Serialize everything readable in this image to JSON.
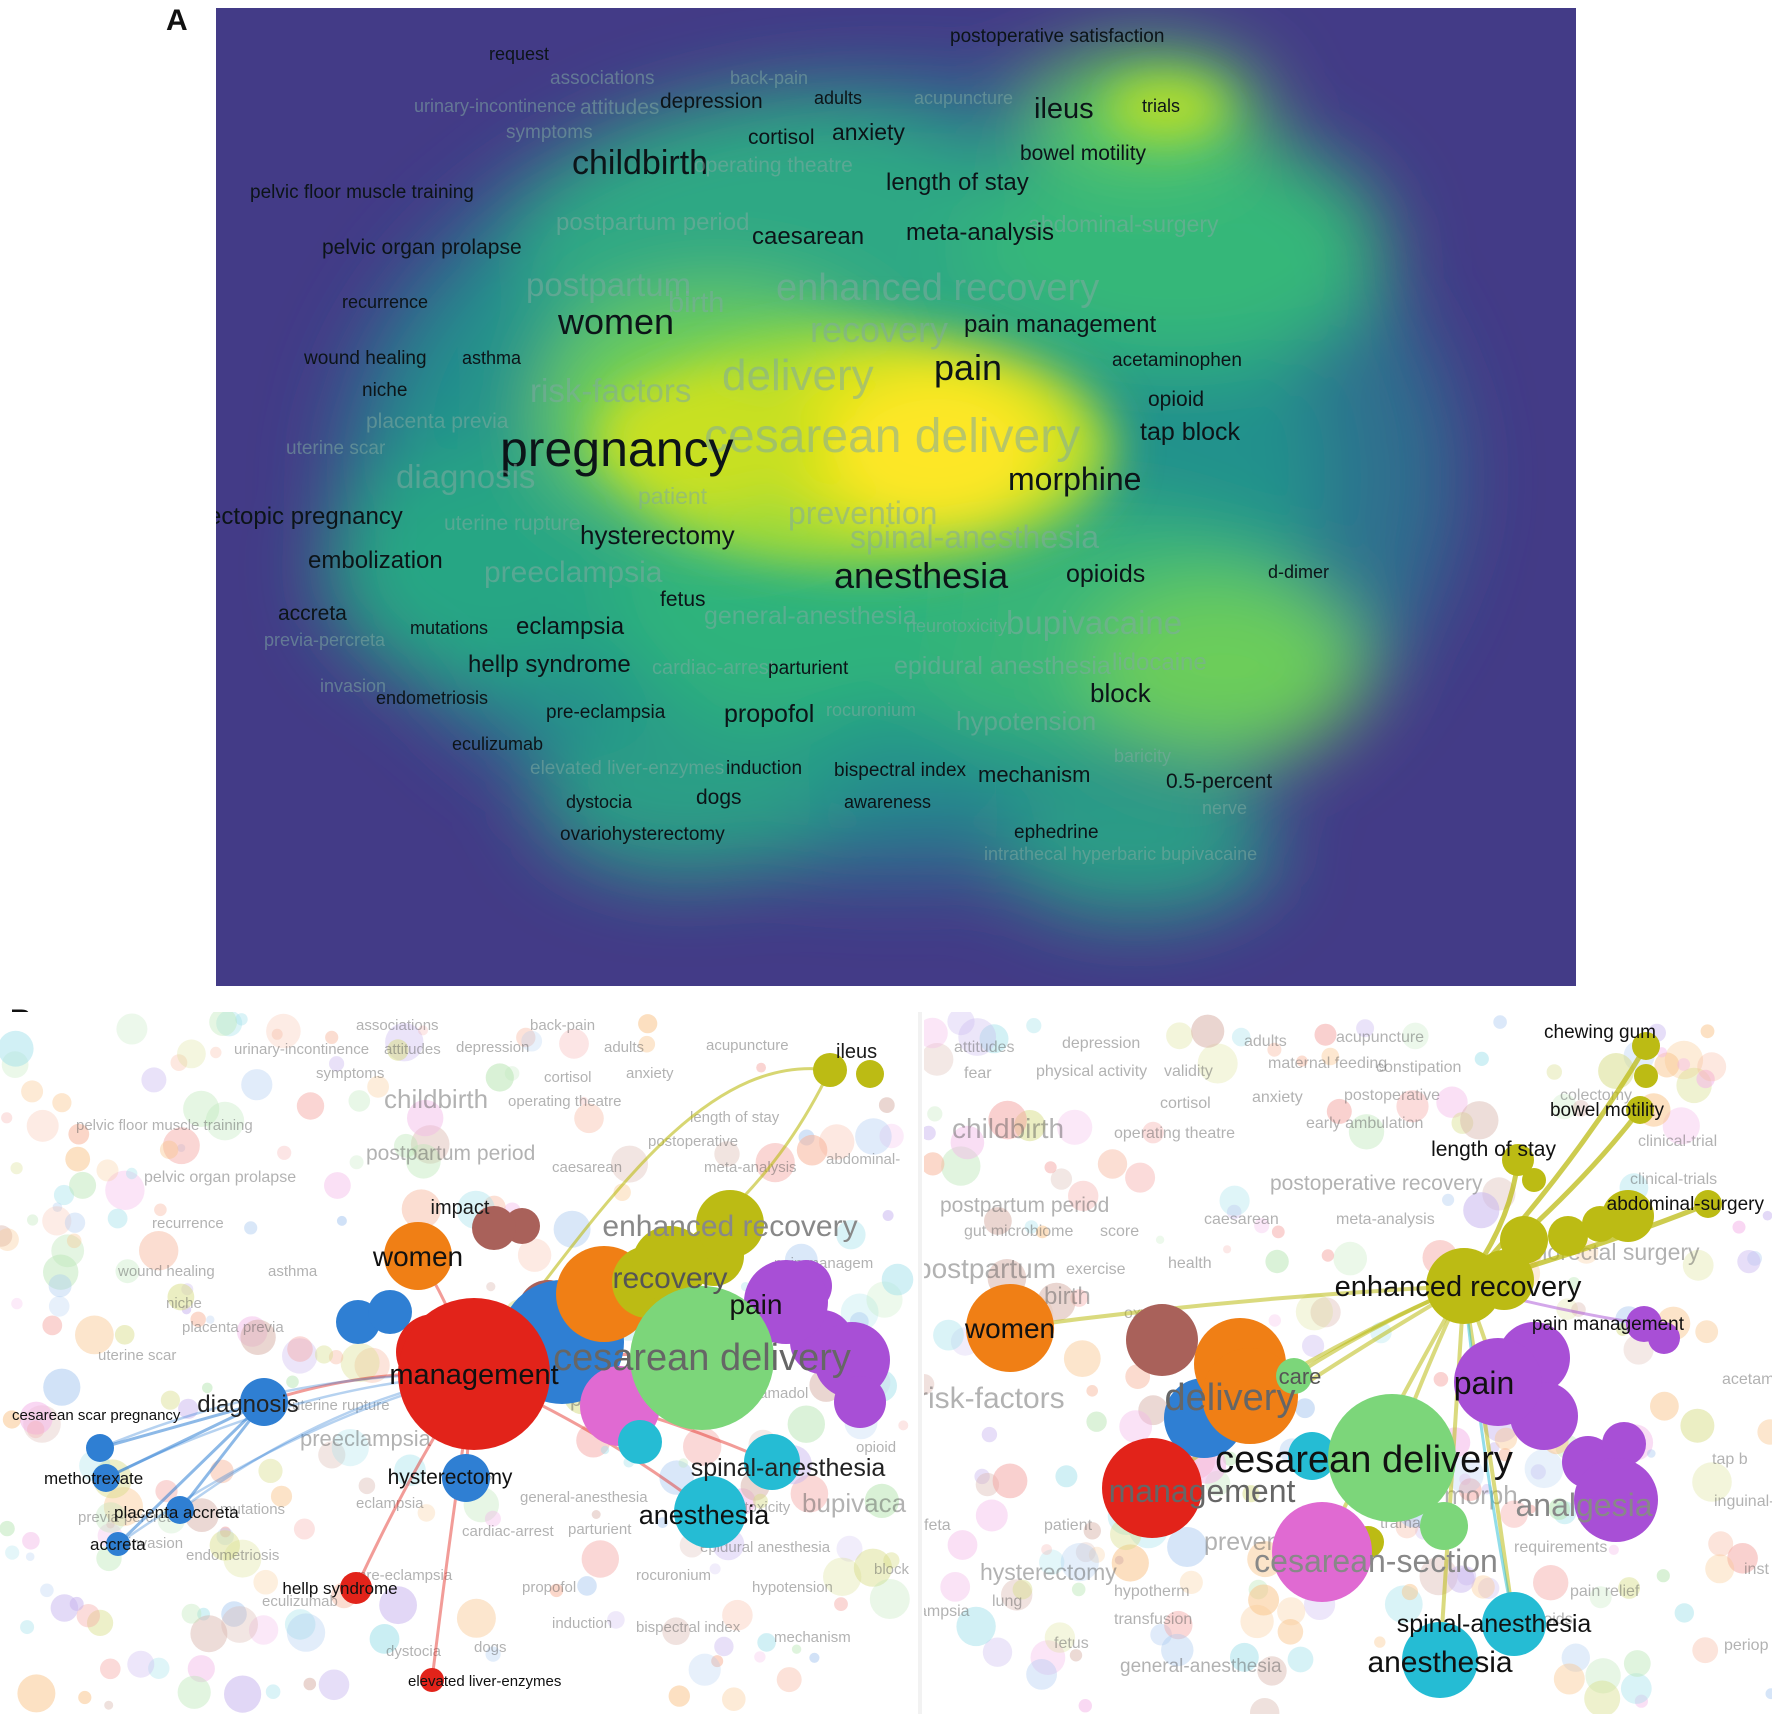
{
  "panel_labels": {
    "a": "A",
    "b": "B"
  },
  "colors": {
    "density_low": "#433b87",
    "density_mid": "#22a387",
    "density_high": "#f2e51d",
    "cluster_red": "#e2231a",
    "cluster_blue": "#2f7fd3",
    "cluster_orange": "#f07f15",
    "cluster_yellow": "#bcbb14",
    "cluster_purple": "#a84fd6",
    "cluster_green": "#7cd67a",
    "cluster_cyan": "#25bcd4",
    "cluster_pink": "#e06ad2",
    "cluster_brown": "#a9615a"
  },
  "panel_a": {
    "terms": [
      {
        "text": "postoperative satisfaction",
        "dim": false
      },
      {
        "text": "request",
        "dim": false
      },
      {
        "text": "associations",
        "dim": true
      },
      {
        "text": "back-pain",
        "dim": true
      },
      {
        "text": "urinary-incontinence",
        "dim": true
      },
      {
        "text": "attitudes",
        "dim": true
      },
      {
        "text": "depression",
        "dim": false
      },
      {
        "text": "adults",
        "dim": false
      },
      {
        "text": "acupuncture",
        "dim": true
      },
      {
        "text": "ileus",
        "dim": false
      },
      {
        "text": "trials",
        "dim": false
      },
      {
        "text": "symptoms",
        "dim": true
      },
      {
        "text": "cortisol",
        "dim": false
      },
      {
        "text": "anxiety",
        "dim": false
      },
      {
        "text": "bowel motility",
        "dim": false
      },
      {
        "text": "childbirth",
        "dim": false
      },
      {
        "text": "operating theatre",
        "dim": true
      },
      {
        "text": "length of stay",
        "dim": false
      },
      {
        "text": "pelvic floor muscle training",
        "dim": false
      },
      {
        "text": "postpartum period",
        "dim": true
      },
      {
        "text": "abdominal-surgery",
        "dim": true
      },
      {
        "text": "pelvic organ prolapse",
        "dim": false
      },
      {
        "text": "caesarean",
        "dim": false
      },
      {
        "text": "meta-analysis",
        "dim": false
      },
      {
        "text": "postpartum",
        "dim": true
      },
      {
        "text": "birth",
        "dim": true
      },
      {
        "text": "enhanced recovery",
        "dim": true
      },
      {
        "text": "recurrence",
        "dim": false
      },
      {
        "text": "women",
        "dim": false
      },
      {
        "text": "recovery",
        "dim": true
      },
      {
        "text": "pain management",
        "dim": false
      },
      {
        "text": "wound healing",
        "dim": false
      },
      {
        "text": "asthma",
        "dim": false
      },
      {
        "text": "delivery",
        "dim": true
      },
      {
        "text": "pain",
        "dim": false
      },
      {
        "text": "acetaminophen",
        "dim": false
      },
      {
        "text": "niche",
        "dim": false
      },
      {
        "text": "risk-factors",
        "dim": true
      },
      {
        "text": "opioid",
        "dim": false
      },
      {
        "text": "placenta previa",
        "dim": true
      },
      {
        "text": "cesarean delivery",
        "dim": true
      },
      {
        "text": "tap block",
        "dim": false
      },
      {
        "text": "uterine scar",
        "dim": true
      },
      {
        "text": "pregnancy",
        "dim": false
      },
      {
        "text": "diagnosis",
        "dim": true
      },
      {
        "text": "morphine",
        "dim": false
      },
      {
        "text": "patient",
        "dim": true
      },
      {
        "text": "ectopic pregnancy",
        "dim": false
      },
      {
        "text": "uterine rupture",
        "dim": true
      },
      {
        "text": "prevention",
        "dim": true
      },
      {
        "text": "hysterectomy",
        "dim": false
      },
      {
        "text": "spinal-anesthesia",
        "dim": true
      },
      {
        "text": "embolization",
        "dim": false
      },
      {
        "text": "preeclampsia",
        "dim": true
      },
      {
        "text": "anesthesia",
        "dim": false
      },
      {
        "text": "opioids",
        "dim": false
      },
      {
        "text": "d-dimer",
        "dim": false
      },
      {
        "text": "fetus",
        "dim": false
      },
      {
        "text": "accreta",
        "dim": false
      },
      {
        "text": "mutations",
        "dim": false
      },
      {
        "text": "eclampsia",
        "dim": false
      },
      {
        "text": "general-anesthesia",
        "dim": true
      },
      {
        "text": "neurotoxicity",
        "dim": true
      },
      {
        "text": "bupivacaine",
        "dim": true
      },
      {
        "text": "previa-percreta",
        "dim": true
      },
      {
        "text": "hellp syndrome",
        "dim": false
      },
      {
        "text": "cardiac-arrest",
        "dim": true
      },
      {
        "text": "parturient",
        "dim": false
      },
      {
        "text": "epidural anesthesia",
        "dim": true
      },
      {
        "text": "lidocaine",
        "dim": true
      },
      {
        "text": "invasion",
        "dim": true
      },
      {
        "text": "endometriosis",
        "dim": false
      },
      {
        "text": "block",
        "dim": false
      },
      {
        "text": "pre-eclampsia",
        "dim": false
      },
      {
        "text": "propofol",
        "dim": false
      },
      {
        "text": "rocuronium",
        "dim": true
      },
      {
        "text": "hypotension",
        "dim": true
      },
      {
        "text": "eculizumab",
        "dim": false
      },
      {
        "text": "elevated liver-enzymes",
        "dim": true
      },
      {
        "text": "induction",
        "dim": false
      },
      {
        "text": "bispectral index",
        "dim": false
      },
      {
        "text": "mechanism",
        "dim": false
      },
      {
        "text": "baricity",
        "dim": true
      },
      {
        "text": "0.5-percent",
        "dim": false
      },
      {
        "text": "dystocia",
        "dim": false
      },
      {
        "text": "dogs",
        "dim": false
      },
      {
        "text": "awareness",
        "dim": false
      },
      {
        "text": "nerve",
        "dim": true
      },
      {
        "text": "ovariohysterectomy",
        "dim": false
      },
      {
        "text": "ephedrine",
        "dim": false
      },
      {
        "text": "intrathecal hyperbaric bupivacaine",
        "dim": true
      }
    ]
  },
  "panel_b_left": {
    "nodes": [
      {
        "label": "ileus",
        "cluster": "yellow"
      },
      {
        "label": "impact",
        "cluster": "brown"
      },
      {
        "label": "women",
        "cluster": "orange"
      },
      {
        "label": "enhanced recovery",
        "cluster": "yellow"
      },
      {
        "label": "recovery",
        "cluster": "yellow"
      },
      {
        "label": "pain",
        "cluster": "purple"
      },
      {
        "label": "management",
        "cluster": "red"
      },
      {
        "label": "cesarean delivery",
        "cluster": "green"
      },
      {
        "label": "diagnosis",
        "cluster": "blue"
      },
      {
        "label": "cesarean scar pregnancy",
        "cluster": "blue"
      },
      {
        "label": "methotrexate",
        "cluster": "blue"
      },
      {
        "label": "placenta accreta",
        "cluster": "blue"
      },
      {
        "label": "accreta",
        "cluster": "blue"
      },
      {
        "label": "hysterectomy",
        "cluster": "blue"
      },
      {
        "label": "spinal-anesthesia",
        "cluster": "cyan"
      },
      {
        "label": "anesthesia",
        "cluster": "cyan"
      },
      {
        "label": "hellp syndrome",
        "cluster": "red"
      },
      {
        "label": "elevated liver-enzymes",
        "cluster": "red"
      }
    ],
    "faint_labels": [
      "associations",
      "back-pain",
      "urinary-incontinence",
      "attitudes",
      "depression",
      "adults",
      "acupuncture",
      "symptoms",
      "cortisol",
      "anxiety",
      "childbirth",
      "operating theatre",
      "length of stay",
      "pelvic floor muscle training",
      "postpartum period",
      "caesarean",
      "meta-analysis",
      "abdominal-",
      "pelvic organ prolapse",
      "recurrence",
      "wound healing",
      "asthma",
      "niche",
      "placenta previa",
      "uterine scar",
      "uterine rupture",
      "preeclampsia",
      "prevention",
      "fetus",
      "general-anesthesia",
      "eclampsia",
      "previa-percreta",
      "mutations",
      "opioid",
      "bupivaca",
      "neurotoxicity",
      "parturient",
      "cardiac-arrest",
      "epidural anesthesia",
      "invasion",
      "endometriosis",
      "pre-eclampsia",
      "propofol",
      "rocuronium",
      "hypotension",
      "eculizumab",
      "induction",
      "bispectral index",
      "mechanism",
      "dogs",
      "dystocia",
      "postoperative",
      "tramadol",
      "block",
      "pain managem"
    ]
  },
  "panel_b_right": {
    "nodes": [
      {
        "label": "chewing gum",
        "cluster": "yellow"
      },
      {
        "label": "bowel motility",
        "cluster": "yellow"
      },
      {
        "label": "length of stay",
        "cluster": "yellow"
      },
      {
        "label": "abdominal-surgery",
        "cluster": "yellow"
      },
      {
        "label": "enhanced recovery",
        "cluster": "yellow"
      },
      {
        "label": "pain management",
        "cluster": "purple"
      },
      {
        "label": "women",
        "cluster": "orange"
      },
      {
        "label": "pain",
        "cluster": "purple"
      },
      {
        "label": "delivery",
        "cluster": "orange"
      },
      {
        "label": "cesarean delivery",
        "cluster": "green"
      },
      {
        "label": "management",
        "cluster": "red"
      },
      {
        "label": "analgesia",
        "cluster": "purple"
      },
      {
        "label": "cesarean-section",
        "cluster": "pink"
      },
      {
        "label": "spinal-anesthesia",
        "cluster": "cyan"
      },
      {
        "label": "anesthesia",
        "cluster": "cyan"
      },
      {
        "label": "care",
        "cluster": "green"
      }
    ],
    "faint_labels": [
      "attitudes",
      "depression",
      "adults",
      "acupuncture",
      "fear",
      "physical activity",
      "validity",
      "maternal feeding",
      "constipation",
      "cortisol",
      "anxiety",
      "postoperative",
      "colectomy",
      "childbirth",
      "operating theatre",
      "early ambulation",
      "clinical-trial",
      "postoperative recovery",
      "clinical-trials",
      "postpartum period",
      "caesarean",
      "meta-analysis",
      "gut microbiome",
      "score",
      "postpartum",
      "exercise",
      "health",
      "colorectal surgery",
      "birth",
      "oxytocin",
      "risk-factors",
      "acetaminophen",
      "prevention",
      "tramadol",
      "tap b",
      "patient",
      "feta",
      "hysterectomy",
      "lung",
      "transfusion",
      "ampsia",
      "fetus",
      "general-anesthesia",
      "requirements",
      "pain relief",
      "opioids",
      "periop",
      "morph",
      "hypotherm",
      "inguinal-he",
      "inst"
    ]
  }
}
